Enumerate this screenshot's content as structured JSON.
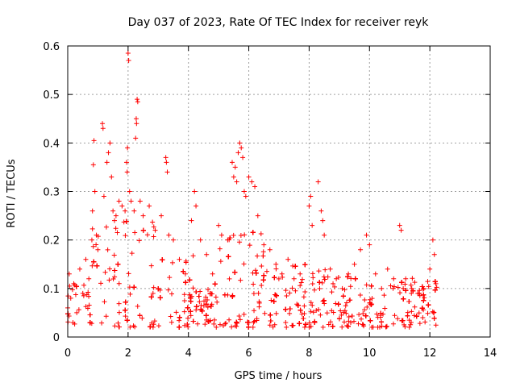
{
  "chart_data": {
    "type": "scatter",
    "title": "Day 037 of 2023, Rate Of TEC Index for receiver reyk",
    "xlabel": "GPS time / hours",
    "ylabel": "ROTI / TECUs",
    "xlim": [
      0,
      14
    ],
    "ylim": [
      0,
      0.6
    ],
    "xticks": [
      "0",
      "2",
      "4",
      "6",
      "8",
      "10",
      "12",
      "14"
    ],
    "yticks": [
      "0",
      "0.1",
      "0.2",
      "0.3",
      "0.4",
      "0.5",
      "0.6"
    ],
    "grid": true,
    "marker": "+",
    "marker_color": "#ff0000",
    "data_x_range": [
      0,
      12.25
    ],
    "series": [
      {
        "points": [
          [
            0.05,
            0.13
          ],
          [
            0.1,
            0.08
          ],
          [
            0.2,
            0.11
          ],
          [
            0.3,
            0.05
          ],
          [
            0.4,
            0.14
          ],
          [
            0.5,
            0.09
          ],
          [
            0.6,
            0.16
          ],
          [
            0.7,
            0.12
          ],
          [
            0.8,
            0.2
          ],
          [
            0.82,
            0.26
          ],
          [
            0.85,
            0.355
          ],
          [
            0.87,
            0.405
          ],
          [
            0.9,
            0.3
          ],
          [
            0.95,
            0.21
          ],
          [
            1.0,
            0.18
          ],
          [
            1.15,
            0.44
          ],
          [
            1.17,
            0.43
          ],
          [
            1.2,
            0.29
          ],
          [
            1.3,
            0.36
          ],
          [
            1.35,
            0.38
          ],
          [
            1.4,
            0.4
          ],
          [
            1.45,
            0.33
          ],
          [
            1.5,
            0.26
          ],
          [
            1.55,
            0.24
          ],
          [
            1.6,
            0.25
          ],
          [
            1.7,
            0.28
          ],
          [
            1.8,
            0.27
          ],
          [
            1.9,
            0.26
          ],
          [
            1.95,
            0.36
          ],
          [
            1.97,
            0.34
          ],
          [
            1.98,
            0.39
          ],
          [
            2.0,
            0.585
          ],
          [
            2.02,
            0.57
          ],
          [
            2.05,
            0.3
          ],
          [
            2.1,
            0.28
          ],
          [
            2.2,
            0.26
          ],
          [
            2.25,
            0.41
          ],
          [
            2.27,
            0.45
          ],
          [
            2.28,
            0.44
          ],
          [
            2.3,
            0.49
          ],
          [
            2.32,
            0.485
          ],
          [
            2.4,
            0.28
          ],
          [
            2.5,
            0.25
          ],
          [
            2.7,
            0.27
          ],
          [
            2.9,
            0.22
          ],
          [
            3.1,
            0.25
          ],
          [
            3.25,
            0.37
          ],
          [
            3.27,
            0.36
          ],
          [
            3.3,
            0.34
          ],
          [
            3.35,
            0.21
          ],
          [
            3.5,
            0.2
          ],
          [
            3.7,
            0.16
          ],
          [
            3.9,
            0.13
          ],
          [
            4.1,
            0.24
          ],
          [
            4.2,
            0.3
          ],
          [
            4.25,
            0.27
          ],
          [
            4.4,
            0.2
          ],
          [
            4.6,
            0.17
          ],
          [
            4.8,
            0.13
          ],
          [
            5.0,
            0.23
          ],
          [
            5.1,
            0.21
          ],
          [
            5.3,
            0.2
          ],
          [
            5.45,
            0.36
          ],
          [
            5.5,
            0.33
          ],
          [
            5.55,
            0.35
          ],
          [
            5.6,
            0.32
          ],
          [
            5.65,
            0.38
          ],
          [
            5.7,
            0.4
          ],
          [
            5.75,
            0.39
          ],
          [
            5.8,
            0.37
          ],
          [
            5.85,
            0.3
          ],
          [
            5.9,
            0.29
          ],
          [
            6.0,
            0.33
          ],
          [
            6.1,
            0.32
          ],
          [
            6.2,
            0.31
          ],
          [
            6.3,
            0.25
          ],
          [
            6.5,
            0.19
          ],
          [
            6.7,
            0.18
          ],
          [
            6.9,
            0.15
          ],
          [
            7.1,
            0.13
          ],
          [
            7.3,
            0.16
          ],
          [
            7.5,
            0.12
          ],
          [
            7.7,
            0.13
          ],
          [
            8.0,
            0.27
          ],
          [
            8.05,
            0.29
          ],
          [
            8.1,
            0.23
          ],
          [
            8.3,
            0.32
          ],
          [
            8.4,
            0.26
          ],
          [
            8.45,
            0.24
          ],
          [
            8.5,
            0.21
          ],
          [
            8.7,
            0.14
          ],
          [
            8.9,
            0.12
          ],
          [
            9.1,
            0.1
          ],
          [
            9.3,
            0.13
          ],
          [
            9.5,
            0.15
          ],
          [
            9.7,
            0.18
          ],
          [
            9.9,
            0.21
          ],
          [
            10.0,
            0.19
          ],
          [
            10.2,
            0.13
          ],
          [
            10.4,
            0.1
          ],
          [
            10.6,
            0.14
          ],
          [
            10.8,
            0.12
          ],
          [
            11.0,
            0.23
          ],
          [
            11.05,
            0.22
          ],
          [
            11.2,
            0.12
          ],
          [
            11.4,
            0.1
          ],
          [
            11.6,
            0.09
          ],
          [
            11.8,
            0.1
          ],
          [
            12.0,
            0.14
          ],
          [
            12.1,
            0.2
          ],
          [
            12.15,
            0.17
          ],
          [
            12.2,
            0.11
          ]
        ]
      }
    ]
  }
}
